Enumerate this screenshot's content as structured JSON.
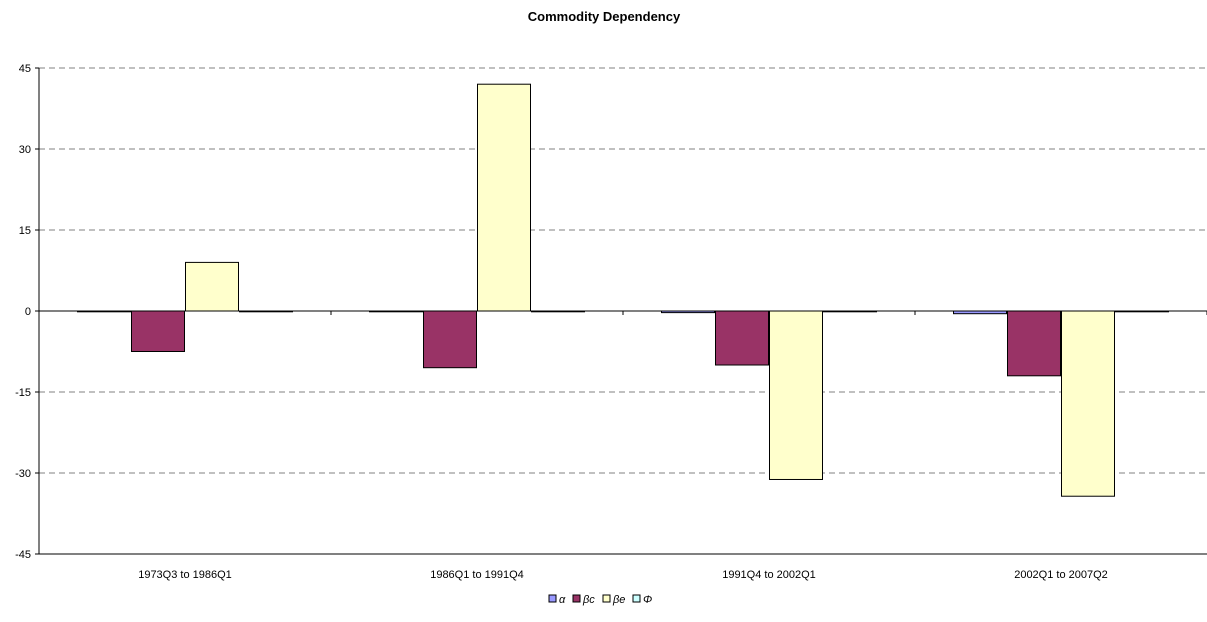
{
  "chart_data": {
    "type": "bar",
    "title": "Commodity Dependency",
    "xlabel": "",
    "ylabel": "",
    "categories": [
      "1973Q3 to 1986Q1",
      "1986Q1 to 1991Q4",
      "1991Q4 to 2002Q1",
      "2002Q1 to 2007Q2"
    ],
    "ylim": [
      -45,
      45
    ],
    "yticks": [
      45,
      30,
      15,
      0,
      -15,
      -30,
      -45
    ],
    "grid": "horizontal dashed",
    "legend_position": "bottom",
    "series": [
      {
        "name": "α",
        "color": "#9999ff",
        "values": [
          -0.15,
          -0.1,
          -0.3,
          -0.5
        ]
      },
      {
        "name": "βc",
        "color": "#993366",
        "values": [
          -7.5,
          -10.5,
          -10,
          -12
        ]
      },
      {
        "name": "βe",
        "color": "#ffffcc",
        "values": [
          9,
          42,
          -31.2,
          -34.3
        ]
      },
      {
        "name": "Φ",
        "color": "#ccffff",
        "values": [
          0,
          0,
          0,
          0
        ]
      }
    ]
  }
}
